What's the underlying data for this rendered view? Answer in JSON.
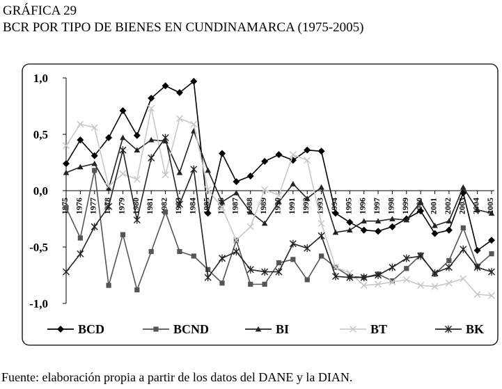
{
  "header": {
    "figure_label": "GRÁFICA 29",
    "title": "BCR POR TIPO DE BIENES EN CUNDINAMARCA (1975-2005)"
  },
  "footer": {
    "source": "Fuente: elaboración propia a partir de los datos del DANE y la DIAN."
  },
  "chart_data": {
    "type": "line",
    "title": "BCR POR TIPO DE BIENES EN CUNDINAMARCA (1975-2005)",
    "xlabel": "",
    "ylabel": "",
    "ylim": [
      -1.0,
      1.0
    ],
    "y_ticks": [
      1.0,
      0.5,
      0.0,
      -0.5,
      -1.0
    ],
    "y_tick_labels": [
      "1,0",
      "0,5",
      "0,0",
      "-0,5",
      "-1,0"
    ],
    "grid": false,
    "legend_position": "bottom",
    "x": [
      "1975",
      "1976",
      "1977",
      "1978",
      "1979",
      "1980",
      "1981",
      "1982",
      "1983",
      "1984",
      "1985",
      "1986",
      "1987",
      "1988",
      "1989",
      "1990",
      "1991",
      "1992",
      "1993",
      "1994",
      "1995",
      "1996",
      "1997",
      "1998",
      "1999",
      "2000",
      "2001",
      "2002",
      "2003",
      "2004",
      "2005"
    ],
    "series": [
      {
        "name": "BCD",
        "color": "#000000",
        "marker": "diamond",
        "dash": "",
        "values": [
          0.24,
          0.45,
          0.31,
          0.47,
          0.71,
          0.49,
          0.82,
          0.93,
          0.87,
          0.97,
          -0.2,
          0.33,
          0.08,
          0.13,
          0.26,
          0.32,
          0.27,
          0.36,
          0.35,
          -0.2,
          -0.28,
          -0.35,
          -0.36,
          -0.32,
          -0.25,
          -0.18,
          -0.38,
          -0.35,
          -0.02,
          -0.53,
          -0.44
        ]
      },
      {
        "name": "BCND",
        "color": "#555555",
        "marker": "square",
        "dash": "",
        "values": [
          -0.15,
          -0.42,
          0.18,
          -0.84,
          -0.39,
          -0.88,
          -0.54,
          -0.19,
          -0.54,
          -0.58,
          -0.7,
          -0.82,
          -0.44,
          -0.83,
          -0.83,
          -0.64,
          -0.61,
          -0.79,
          -0.58,
          -0.68,
          -0.76,
          -0.77,
          -0.74,
          -0.8,
          -0.69,
          -0.57,
          -0.74,
          -0.62,
          -0.33,
          -0.67,
          -0.56
        ]
      },
      {
        "name": "BI",
        "color": "#222222",
        "marker": "triangle",
        "dash": "",
        "values": [
          0.16,
          0.21,
          0.24,
          0.02,
          0.47,
          0.36,
          0.45,
          0.44,
          0.16,
          0.53,
          0.18,
          -0.1,
          -0.02,
          -0.19,
          -0.29,
          -0.1,
          0.06,
          -0.07,
          0.03,
          -0.37,
          -0.35,
          -0.27,
          -0.27,
          -0.25,
          -0.26,
          -0.1,
          -0.31,
          -0.27,
          0.03,
          -0.17,
          -0.2
        ]
      },
      {
        "name": "BT",
        "color": "#c8c8c8",
        "marker": "x",
        "dash": "",
        "values": [
          0.4,
          0.59,
          0.56,
          0.04,
          0.15,
          0.1,
          0.73,
          0.14,
          0.64,
          0.59,
          0.01,
          -0.15,
          -0.44,
          -0.32,
          0.01,
          -0.04,
          0.32,
          0.27,
          -0.29,
          -0.68,
          -0.73,
          -0.84,
          -0.83,
          -0.81,
          -0.79,
          -0.84,
          -0.85,
          -0.82,
          -0.78,
          -0.92,
          -0.93
        ]
      },
      {
        "name": "BK",
        "color": "#222222",
        "marker": "star",
        "dash": "",
        "values": [
          -0.72,
          -0.56,
          -0.32,
          -0.14,
          0.36,
          -0.26,
          0.29,
          0.47,
          -0.12,
          0.19,
          -0.77,
          -0.6,
          -0.54,
          -0.7,
          -0.72,
          -0.72,
          -0.47,
          -0.51,
          -0.4,
          -0.76,
          -0.77,
          -0.77,
          -0.75,
          -0.68,
          -0.6,
          -0.58,
          -0.73,
          -0.68,
          -0.52,
          -0.68,
          -0.72
        ]
      }
    ]
  }
}
